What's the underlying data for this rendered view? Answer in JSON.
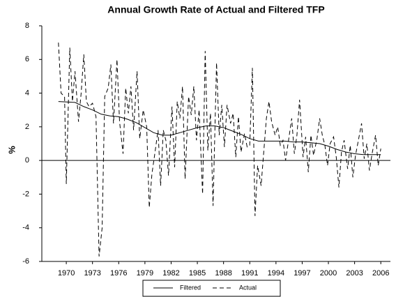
{
  "chart_data": {
    "type": "line",
    "title": "Annual Growth Rate of Actual and Filtered TFP",
    "y_label": "%",
    "xlim": [
      1967.2,
      2007.1
    ],
    "xticks": [
      1970,
      1973,
      1976,
      1979,
      1982,
      1985,
      1988,
      1991,
      1994,
      1997,
      2000,
      2003,
      2006
    ],
    "ylim": [
      -6,
      8
    ],
    "yticks": [
      -6,
      -4,
      -2,
      0,
      2,
      4,
      6,
      8
    ],
    "zero_line": 0,
    "series": [
      {
        "name": "Filtered",
        "color": "#000000",
        "dashed": false,
        "x": [
          1969.1,
          1971,
          1972,
          1973,
          1974,
          1975,
          1976,
          1977,
          1978,
          1979,
          1980,
          1981,
          1982,
          1983,
          1984,
          1985,
          1986,
          1987,
          1988,
          1989,
          1990,
          1991,
          1992,
          1993,
          1994,
          1995,
          1996,
          1997,
          1998,
          1999,
          2000,
          2001,
          2002,
          2003,
          2004,
          2005,
          2006
        ],
        "values": [
          3.5,
          3.45,
          3.2,
          3.0,
          2.75,
          2.65,
          2.6,
          2.45,
          2.25,
          1.95,
          1.65,
          1.5,
          1.5,
          1.65,
          1.8,
          1.95,
          2.05,
          2.05,
          1.95,
          1.75,
          1.55,
          1.3,
          1.15,
          1.15,
          1.15,
          1.15,
          1.1,
          1.1,
          1.05,
          1.0,
          0.85,
          0.65,
          0.5,
          0.4,
          0.35,
          0.35,
          0.35
        ]
      },
      {
        "name": "Actual",
        "color": "#000000",
        "dashed": true,
        "x": [
          1969.1,
          1969.4,
          1969.8,
          1970.0,
          1970.4,
          1970.7,
          1971.0,
          1971.4,
          1971.7,
          1972.0,
          1972.3,
          1972.6,
          1973.0,
          1973.4,
          1973.75,
          1974.1,
          1974.4,
          1974.8,
          1975.1,
          1975.4,
          1975.8,
          1976.1,
          1976.5,
          1976.8,
          1977.1,
          1977.4,
          1977.7,
          1978.1,
          1978.4,
          1978.8,
          1979.2,
          1979.5,
          1979.8,
          1980.1,
          1980.5,
          1980.8,
          1981.1,
          1981.4,
          1981.7,
          1982.1,
          1982.4,
          1982.7,
          1983.0,
          1983.3,
          1983.6,
          1984.0,
          1984.3,
          1984.6,
          1984.9,
          1985.2,
          1985.6,
          1985.9,
          1986.2,
          1986.5,
          1986.8,
          1987.2,
          1987.5,
          1987.8,
          1988.1,
          1988.4,
          1988.8,
          1989.1,
          1989.4,
          1989.7,
          1990.0,
          1990.4,
          1990.7,
          1991.0,
          1991.3,
          1991.6,
          1991.9,
          1992.3,
          1992.6,
          1992.9,
          1993.2,
          1993.5,
          1993.9,
          1994.2,
          1994.5,
          1994.8,
          1995.1,
          1995.5,
          1995.8,
          1996.1,
          1996.4,
          1996.7,
          1997.1,
          1997.4,
          1997.7,
          1998.0,
          1998.3,
          1998.7,
          1999.0,
          1999.3,
          1999.6,
          1999.9,
          2000.2,
          2000.6,
          2000.9,
          2001.2,
          2001.5,
          2001.8,
          2002.2,
          2002.5,
          2002.8,
          2003.1,
          2003.4,
          2003.8,
          2004.1,
          2004.4,
          2004.7,
          2005.0,
          2005.4,
          2005.7,
          2006.0
        ],
        "values": [
          7.0,
          4.0,
          3.8,
          -1.4,
          6.7,
          3.5,
          5.3,
          2.3,
          4.0,
          6.3,
          3.5,
          3.2,
          3.4,
          2.6,
          -5.7,
          -4.0,
          3.8,
          4.3,
          5.7,
          2.2,
          6.0,
          2.3,
          0.4,
          4.3,
          2.8,
          4.4,
          1.8,
          5.3,
          1.3,
          3.0,
          2.0,
          -2.8,
          -0.8,
          0.3,
          1.8,
          -1.5,
          1.8,
          1.2,
          -0.9,
          3.2,
          -0.4,
          3.5,
          2.5,
          4.4,
          -1.1,
          3.8,
          2.7,
          4.4,
          1.2,
          3.0,
          -2.0,
          6.5,
          0.6,
          2.8,
          -2.7,
          5.8,
          1.5,
          3.3,
          0.8,
          3.3,
          2.2,
          2.8,
          0.2,
          2.6,
          0.5,
          1.6,
          0.8,
          0.9,
          5.5,
          -3.3,
          -0.3,
          -1.5,
          0.5,
          2.5,
          3.5,
          2.3,
          1.5,
          2.0,
          0.9,
          1.2,
          0.0,
          1.4,
          2.5,
          0.4,
          1.5,
          3.6,
          0.2,
          1.4,
          -0.7,
          1.5,
          0.3,
          1.3,
          2.5,
          1.5,
          0.9,
          -0.3,
          1.0,
          1.4,
          0.2,
          -1.6,
          0.5,
          1.2,
          -0.5,
          0.9,
          -1.0,
          0.3,
          1.1,
          2.2,
          0.1,
          1.0,
          -0.6,
          0.4,
          1.5,
          -0.3,
          0.7
        ]
      }
    ]
  }
}
